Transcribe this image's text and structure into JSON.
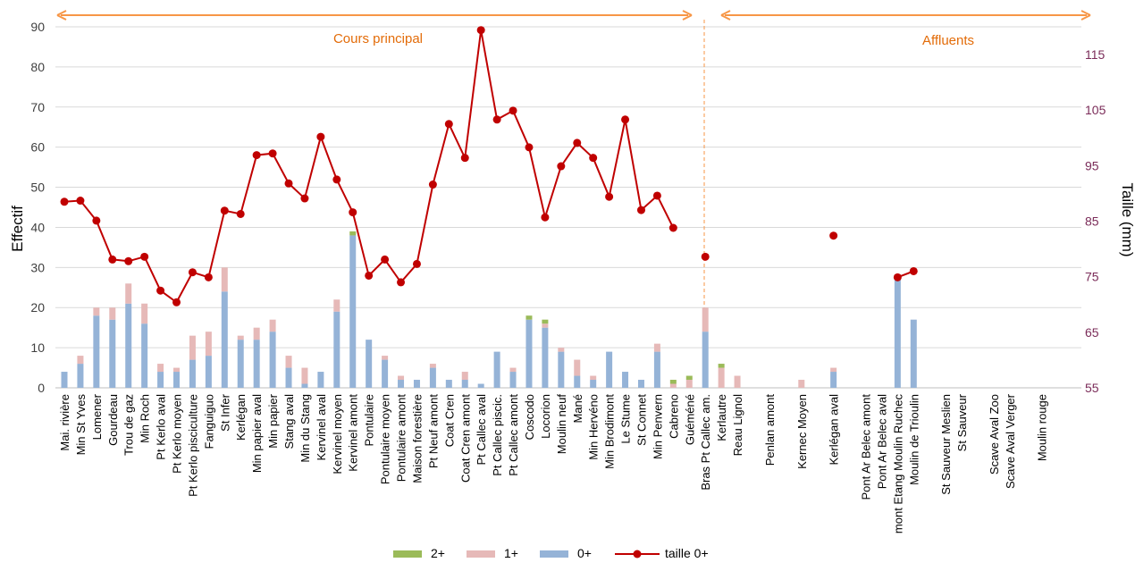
{
  "chart_data": {
    "type": "bar",
    "subtype": "stacked bar with line on secondary axis",
    "ylabel_left": "Effectif",
    "ylabel_right": "Taille (mm)",
    "ylim_left": [
      0,
      90
    ],
    "yticks_left": [
      "0",
      "10",
      "20",
      "30",
      "40",
      "50",
      "60",
      "70",
      "80",
      "90"
    ],
    "ylim_right": [
      55,
      120
    ],
    "yticks_right": [
      "55",
      "65",
      "75",
      "85",
      "95",
      "105",
      "115"
    ],
    "grid": true,
    "legend_position": "bottom-center",
    "colors": {
      "s0": "#95b3d7",
      "s1": "#e6b9b8",
      "s2": "#9bbb59",
      "line": "#c00000",
      "arrow": "#f79646",
      "section_text": "#e36c09",
      "right_axis_text": "#7b2c59",
      "grid": "#d9d9d9"
    },
    "legend": [
      {
        "name": "2+",
        "kind": "bar",
        "series": "s2"
      },
      {
        "name": "1+",
        "kind": "bar",
        "series": "s1"
      },
      {
        "name": "0+",
        "kind": "bar",
        "series": "s0"
      },
      {
        "name": "taille 0+",
        "kind": "line",
        "series": "line"
      }
    ],
    "sections": [
      {
        "label": "Cours principal"
      },
      {
        "label": "Affluents"
      }
    ],
    "categories": [
      "Mai. rivière",
      "Min St Yves",
      "Lomener",
      "Gourdeau",
      "Trou de gaz",
      "Min Roch",
      "Pt Kerlo aval",
      "Pt Kerlo moyen",
      "Pt Kerlo pisciculture",
      "Fanguiguo",
      "St Infer",
      "Kerlégan",
      "Min papier aval",
      "Min papier",
      "Stang aval",
      "Min du Stang",
      "Kervinel aval",
      "Kervinel moyen",
      "Kervinel amont",
      "Pontulaire",
      "Pontulaire moyen",
      "Pontulaire amont",
      "Maison forestière",
      "Pt Neuf amont",
      "Coat Cren",
      "Coat Cren amont",
      "Pt Callec aval",
      "Pt Callec piscic.",
      "Pt Callec amont",
      "Coscodo",
      "Locorion",
      "Moulin neuf",
      "Mané",
      "Min Hervéno",
      "Min Brodimont",
      "Le Stume",
      "St Connet",
      "Min Penvern",
      "Cabreno",
      "Guéméné",
      "Bras Pt Callec am.",
      "Kerlautre",
      "Reau Lignol",
      "",
      "Penlan amont",
      "",
      "Kernec Moyen",
      "",
      "Kerlégan aval",
      "",
      "Pont Ar Belec amont",
      "Pont Ar Belec aval",
      "mont Etang Moulin Ruchec",
      "Moulin de Trioulin",
      "",
      "St Sauveur Meslien",
      "St Sauveur",
      "",
      "Scave Aval Zoo",
      "Scave Aval Verger",
      "",
      "Moulin rouge"
    ],
    "series": [
      {
        "name": "0+",
        "values": [
          4,
          6,
          18,
          17,
          21,
          16,
          4,
          4,
          7,
          8,
          24,
          12,
          12,
          14,
          5,
          1,
          4,
          19,
          38,
          12,
          7,
          2,
          2,
          5,
          2,
          2,
          1,
          9,
          4,
          17,
          15,
          9,
          3,
          2,
          9,
          4,
          2,
          9,
          0,
          0,
          14,
          0,
          0,
          0,
          0,
          0,
          0,
          0,
          4,
          0,
          0,
          0,
          27,
          17,
          0,
          0,
          0,
          0,
          0,
          0,
          0,
          0
        ]
      },
      {
        "name": "1+",
        "values": [
          0,
          2,
          2,
          3,
          5,
          5,
          2,
          1,
          6,
          6,
          6,
          1,
          3,
          3,
          3,
          4,
          0,
          3,
          0,
          0,
          1,
          1,
          0,
          1,
          0,
          2,
          0,
          0,
          1,
          0,
          1,
          1,
          4,
          1,
          0,
          0,
          0,
          2,
          1,
          2,
          6,
          5,
          3,
          0,
          0,
          0,
          2,
          0,
          1,
          0,
          0,
          0,
          0,
          0,
          0,
          0,
          0,
          0,
          0,
          0,
          0,
          0
        ]
      },
      {
        "name": "2+",
        "values": [
          0,
          0,
          0,
          0,
          0,
          0,
          0,
          0,
          0,
          0,
          0,
          0,
          0,
          0,
          0,
          0,
          0,
          0,
          1,
          0,
          0,
          0,
          0,
          0,
          0,
          0,
          0,
          0,
          0,
          1,
          1,
          0,
          0,
          0,
          0,
          0,
          0,
          0,
          1,
          1,
          0,
          1,
          0,
          0,
          0,
          0,
          0,
          0,
          0,
          0,
          0,
          0,
          0,
          0,
          0,
          0,
          0,
          0,
          0,
          0,
          0,
          0
        ]
      },
      {
        "name": "taille 0+",
        "values": [
          88.5,
          88.7,
          85.1,
          78.1,
          77.8,
          78.6,
          72.5,
          70.4,
          75.8,
          74.9,
          86.9,
          86.3,
          96.9,
          97.2,
          91.8,
          89.1,
          100.2,
          92.5,
          86.6,
          75.2,
          78.1,
          74,
          77.3,
          91.6,
          102.5,
          96.4,
          119.4,
          103.3,
          104.9,
          98.3,
          85.7,
          94.9,
          99.1,
          96.4,
          89.4,
          103.3,
          87,
          89.6,
          83.8,
          null,
          78.6,
          null,
          null,
          null,
          null,
          null,
          null,
          null,
          82.4,
          null,
          null,
          null,
          74.9,
          76,
          null,
          null,
          null,
          null,
          null,
          null,
          null,
          null
        ]
      }
    ]
  }
}
